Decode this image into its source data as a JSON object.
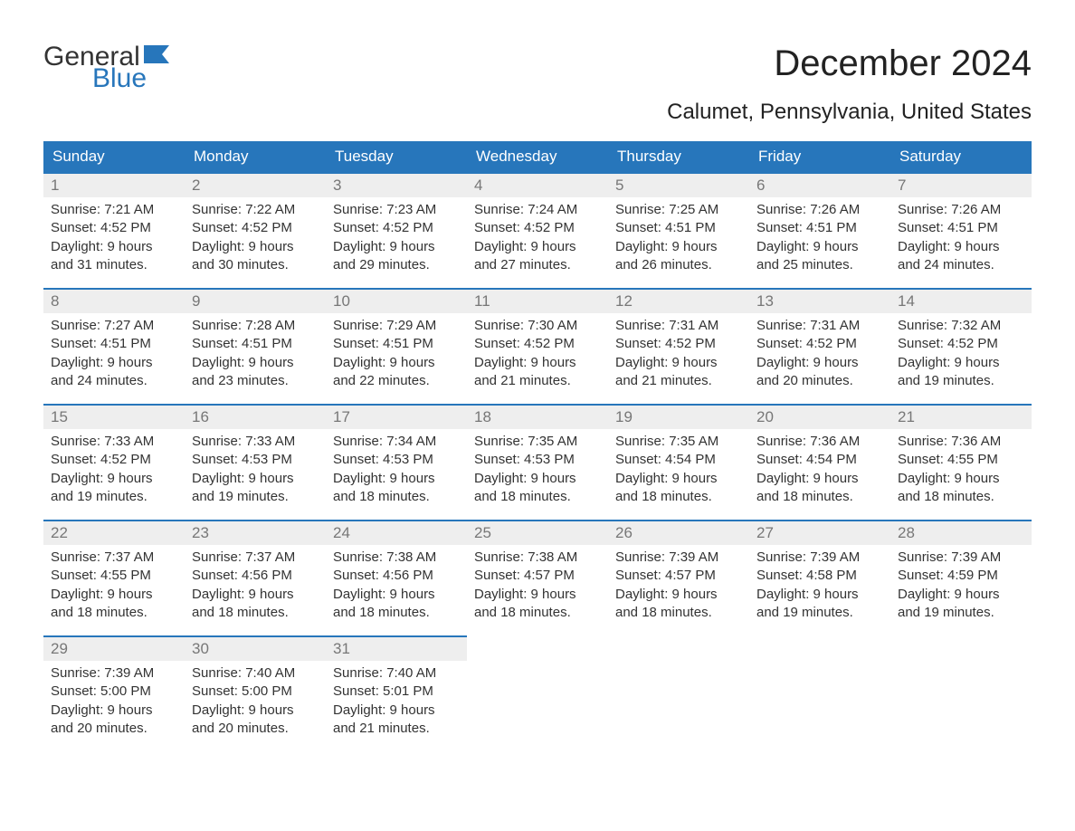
{
  "logo": {
    "word1": "General",
    "word2": "Blue",
    "word1_color": "#333333",
    "word2_color": "#2776bb",
    "flag_color": "#2776bb"
  },
  "title": "December 2024",
  "subtitle": "Calumet, Pennsylvania, United States",
  "colors": {
    "header_bg": "#2776bb",
    "header_text": "#ffffff",
    "daynum_bg": "#eeeeee",
    "daynum_text": "#777777",
    "body_text": "#333333",
    "cell_border": "#2776bb",
    "page_bg": "#ffffff"
  },
  "fonts": {
    "title_size": 40,
    "subtitle_size": 24,
    "header_size": 17,
    "daynum_size": 17,
    "body_size": 15
  },
  "weekdays": [
    "Sunday",
    "Monday",
    "Tuesday",
    "Wednesday",
    "Thursday",
    "Friday",
    "Saturday"
  ],
  "weeks": [
    [
      {
        "day": "1",
        "sunrise": "Sunrise: 7:21 AM",
        "sunset": "Sunset: 4:52 PM",
        "daylight1": "Daylight: 9 hours",
        "daylight2": "and 31 minutes."
      },
      {
        "day": "2",
        "sunrise": "Sunrise: 7:22 AM",
        "sunset": "Sunset: 4:52 PM",
        "daylight1": "Daylight: 9 hours",
        "daylight2": "and 30 minutes."
      },
      {
        "day": "3",
        "sunrise": "Sunrise: 7:23 AM",
        "sunset": "Sunset: 4:52 PM",
        "daylight1": "Daylight: 9 hours",
        "daylight2": "and 29 minutes."
      },
      {
        "day": "4",
        "sunrise": "Sunrise: 7:24 AM",
        "sunset": "Sunset: 4:52 PM",
        "daylight1": "Daylight: 9 hours",
        "daylight2": "and 27 minutes."
      },
      {
        "day": "5",
        "sunrise": "Sunrise: 7:25 AM",
        "sunset": "Sunset: 4:51 PM",
        "daylight1": "Daylight: 9 hours",
        "daylight2": "and 26 minutes."
      },
      {
        "day": "6",
        "sunrise": "Sunrise: 7:26 AM",
        "sunset": "Sunset: 4:51 PM",
        "daylight1": "Daylight: 9 hours",
        "daylight2": "and 25 minutes."
      },
      {
        "day": "7",
        "sunrise": "Sunrise: 7:26 AM",
        "sunset": "Sunset: 4:51 PM",
        "daylight1": "Daylight: 9 hours",
        "daylight2": "and 24 minutes."
      }
    ],
    [
      {
        "day": "8",
        "sunrise": "Sunrise: 7:27 AM",
        "sunset": "Sunset: 4:51 PM",
        "daylight1": "Daylight: 9 hours",
        "daylight2": "and 24 minutes."
      },
      {
        "day": "9",
        "sunrise": "Sunrise: 7:28 AM",
        "sunset": "Sunset: 4:51 PM",
        "daylight1": "Daylight: 9 hours",
        "daylight2": "and 23 minutes."
      },
      {
        "day": "10",
        "sunrise": "Sunrise: 7:29 AM",
        "sunset": "Sunset: 4:51 PM",
        "daylight1": "Daylight: 9 hours",
        "daylight2": "and 22 minutes."
      },
      {
        "day": "11",
        "sunrise": "Sunrise: 7:30 AM",
        "sunset": "Sunset: 4:52 PM",
        "daylight1": "Daylight: 9 hours",
        "daylight2": "and 21 minutes."
      },
      {
        "day": "12",
        "sunrise": "Sunrise: 7:31 AM",
        "sunset": "Sunset: 4:52 PM",
        "daylight1": "Daylight: 9 hours",
        "daylight2": "and 21 minutes."
      },
      {
        "day": "13",
        "sunrise": "Sunrise: 7:31 AM",
        "sunset": "Sunset: 4:52 PM",
        "daylight1": "Daylight: 9 hours",
        "daylight2": "and 20 minutes."
      },
      {
        "day": "14",
        "sunrise": "Sunrise: 7:32 AM",
        "sunset": "Sunset: 4:52 PM",
        "daylight1": "Daylight: 9 hours",
        "daylight2": "and 19 minutes."
      }
    ],
    [
      {
        "day": "15",
        "sunrise": "Sunrise: 7:33 AM",
        "sunset": "Sunset: 4:52 PM",
        "daylight1": "Daylight: 9 hours",
        "daylight2": "and 19 minutes."
      },
      {
        "day": "16",
        "sunrise": "Sunrise: 7:33 AM",
        "sunset": "Sunset: 4:53 PM",
        "daylight1": "Daylight: 9 hours",
        "daylight2": "and 19 minutes."
      },
      {
        "day": "17",
        "sunrise": "Sunrise: 7:34 AM",
        "sunset": "Sunset: 4:53 PM",
        "daylight1": "Daylight: 9 hours",
        "daylight2": "and 18 minutes."
      },
      {
        "day": "18",
        "sunrise": "Sunrise: 7:35 AM",
        "sunset": "Sunset: 4:53 PM",
        "daylight1": "Daylight: 9 hours",
        "daylight2": "and 18 minutes."
      },
      {
        "day": "19",
        "sunrise": "Sunrise: 7:35 AM",
        "sunset": "Sunset: 4:54 PM",
        "daylight1": "Daylight: 9 hours",
        "daylight2": "and 18 minutes."
      },
      {
        "day": "20",
        "sunrise": "Sunrise: 7:36 AM",
        "sunset": "Sunset: 4:54 PM",
        "daylight1": "Daylight: 9 hours",
        "daylight2": "and 18 minutes."
      },
      {
        "day": "21",
        "sunrise": "Sunrise: 7:36 AM",
        "sunset": "Sunset: 4:55 PM",
        "daylight1": "Daylight: 9 hours",
        "daylight2": "and 18 minutes."
      }
    ],
    [
      {
        "day": "22",
        "sunrise": "Sunrise: 7:37 AM",
        "sunset": "Sunset: 4:55 PM",
        "daylight1": "Daylight: 9 hours",
        "daylight2": "and 18 minutes."
      },
      {
        "day": "23",
        "sunrise": "Sunrise: 7:37 AM",
        "sunset": "Sunset: 4:56 PM",
        "daylight1": "Daylight: 9 hours",
        "daylight2": "and 18 minutes."
      },
      {
        "day": "24",
        "sunrise": "Sunrise: 7:38 AM",
        "sunset": "Sunset: 4:56 PM",
        "daylight1": "Daylight: 9 hours",
        "daylight2": "and 18 minutes."
      },
      {
        "day": "25",
        "sunrise": "Sunrise: 7:38 AM",
        "sunset": "Sunset: 4:57 PM",
        "daylight1": "Daylight: 9 hours",
        "daylight2": "and 18 minutes."
      },
      {
        "day": "26",
        "sunrise": "Sunrise: 7:39 AM",
        "sunset": "Sunset: 4:57 PM",
        "daylight1": "Daylight: 9 hours",
        "daylight2": "and 18 minutes."
      },
      {
        "day": "27",
        "sunrise": "Sunrise: 7:39 AM",
        "sunset": "Sunset: 4:58 PM",
        "daylight1": "Daylight: 9 hours",
        "daylight2": "and 19 minutes."
      },
      {
        "day": "28",
        "sunrise": "Sunrise: 7:39 AM",
        "sunset": "Sunset: 4:59 PM",
        "daylight1": "Daylight: 9 hours",
        "daylight2": "and 19 minutes."
      }
    ],
    [
      {
        "day": "29",
        "sunrise": "Sunrise: 7:39 AM",
        "sunset": "Sunset: 5:00 PM",
        "daylight1": "Daylight: 9 hours",
        "daylight2": "and 20 minutes."
      },
      {
        "day": "30",
        "sunrise": "Sunrise: 7:40 AM",
        "sunset": "Sunset: 5:00 PM",
        "daylight1": "Daylight: 9 hours",
        "daylight2": "and 20 minutes."
      },
      {
        "day": "31",
        "sunrise": "Sunrise: 7:40 AM",
        "sunset": "Sunset: 5:01 PM",
        "daylight1": "Daylight: 9 hours",
        "daylight2": "and 21 minutes."
      },
      null,
      null,
      null,
      null
    ]
  ]
}
